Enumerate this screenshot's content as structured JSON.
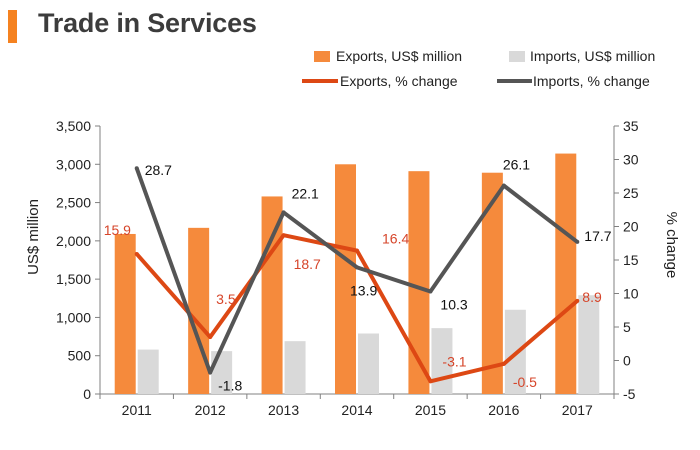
{
  "title": "Trade in Services",
  "colors": {
    "accent": "#F58220",
    "exports_bar": "#F58A3C",
    "imports_bar": "#D9D9D9",
    "exports_line": "#DD4814",
    "imports_line": "#555555",
    "exports_label": "#D6452A",
    "axis": "#808080"
  },
  "chart_data": {
    "type": "bar+line",
    "categories": [
      "2011",
      "2012",
      "2013",
      "2014",
      "2015",
      "2016",
      "2017"
    ],
    "series": [
      {
        "name": "Exports, US$ million",
        "kind": "bar",
        "axis": "left",
        "values": [
          2090,
          2170,
          2580,
          3000,
          2910,
          2890,
          3140
        ]
      },
      {
        "name": "Imports, US$ million",
        "kind": "bar",
        "axis": "left",
        "values": [
          580,
          560,
          690,
          790,
          860,
          1100,
          1290
        ]
      },
      {
        "name": "Exports, % change",
        "kind": "line",
        "axis": "right",
        "values": [
          15.9,
          3.5,
          18.7,
          16.4,
          -3.1,
          -0.5,
          8.9
        ]
      },
      {
        "name": "Imports, % change",
        "kind": "line",
        "axis": "right",
        "values": [
          28.7,
          -1.8,
          22.1,
          13.9,
          10.3,
          26.1,
          17.7
        ]
      }
    ],
    "exports_pct_labels": [
      "15.9",
      "3.5",
      "18.7",
      "16.4",
      "-3.1",
      "-0.5",
      "8.9"
    ],
    "imports_pct_labels": [
      "28.7",
      "-1.8",
      "22.1",
      "13.9",
      "10.3",
      "26.1",
      "17.7"
    ],
    "y_left": {
      "label": "US$ million",
      "min": 0,
      "max": 3500,
      "ticks": [
        "0",
        "500",
        "1,000",
        "1,500",
        "2,000",
        "2,500",
        "3,000",
        "3,500"
      ]
    },
    "y_right": {
      "label": "% change",
      "min": -5,
      "max": 35,
      "ticks": [
        "-5",
        "0",
        "5",
        "10",
        "15",
        "20",
        "25",
        "30",
        "35"
      ]
    },
    "legend": {
      "exports_bar": "Exports, US$ million",
      "imports_bar": "Imports, US$ million",
      "exports_line": "Exports, % change",
      "imports_line": "Imports, % change"
    }
  }
}
